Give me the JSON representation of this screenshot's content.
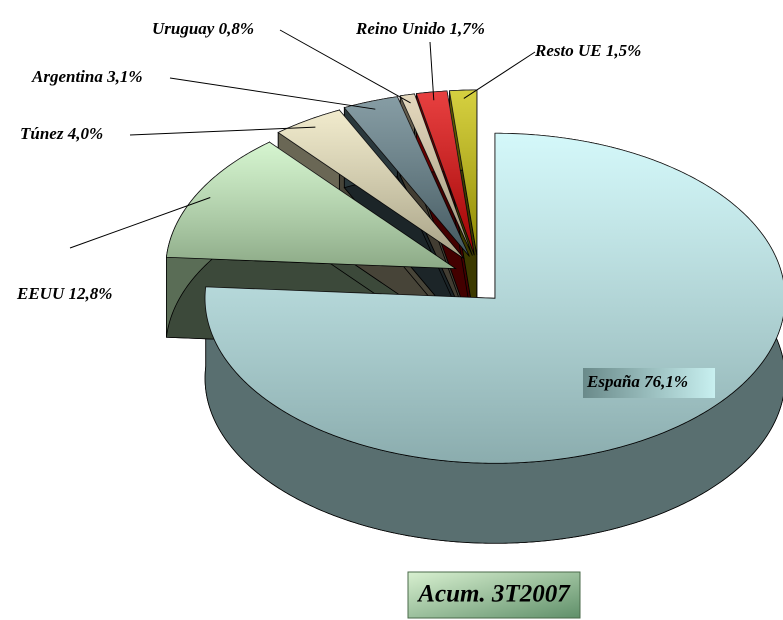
{
  "chart_data": {
    "type": "pie",
    "title": "Acum. 3T2007",
    "categories": [
      "España",
      "EEUU",
      "Túnez",
      "Argentina",
      "Uruguay",
      "Reino Unido",
      "Resto UE"
    ],
    "values": [
      76.1,
      12.8,
      4.0,
      3.1,
      0.8,
      1.7,
      1.5
    ],
    "value_labels": [
      "76,1%",
      "12,8%",
      "4,0%",
      "3,1%",
      "0,8%",
      "1,7%",
      "1,5%"
    ],
    "colors": [
      "#c6f6f8",
      "#c8f2c0",
      "#ece4bc",
      "#5e7c86",
      "#dccca8",
      "#e00000",
      "#c8c000"
    ]
  }
}
